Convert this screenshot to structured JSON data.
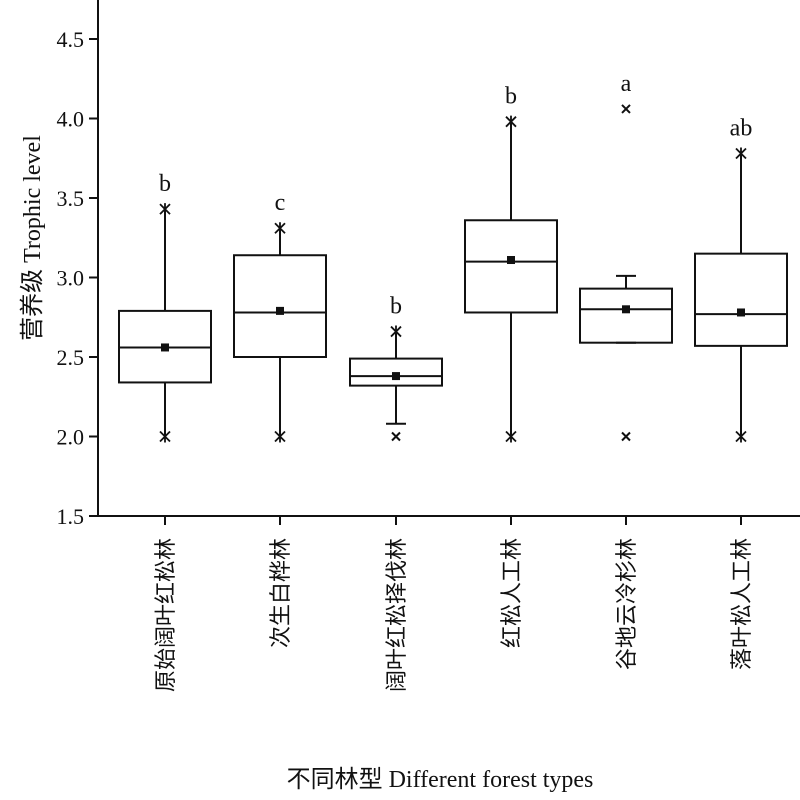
{
  "chart_data": {
    "type": "box",
    "xlabel": "不同林型 Different forest types",
    "ylabel": "营养级 Trophic level",
    "ylim": [
      1.5,
      4.75
    ],
    "yticks": [
      1.5,
      2.0,
      2.5,
      3.0,
      3.5,
      4.0,
      4.5
    ],
    "ytick_labels": [
      "1.5",
      "2.0",
      "2.5",
      "3.0",
      "3.5",
      "4.0",
      "4.5"
    ],
    "grid": false,
    "categories": [
      "原始阔叶红松林",
      "次生白桦林",
      "阔叶红松择伐林",
      "红松人工林",
      "谷地云冷杉林",
      "落叶松人工林"
    ],
    "boxes": [
      {
        "q1": 2.34,
        "median": 2.56,
        "q3": 2.79,
        "mean": 2.56,
        "whisker_low": 2.0,
        "whisker_high": 3.43,
        "outliers": [],
        "significance": "b"
      },
      {
        "q1": 2.5,
        "median": 2.78,
        "q3": 3.14,
        "mean": 2.79,
        "whisker_low": 2.0,
        "whisker_high": 3.31,
        "outliers": [],
        "significance": "c"
      },
      {
        "q1": 2.32,
        "median": 2.38,
        "q3": 2.49,
        "mean": 2.38,
        "whisker_low": 2.08,
        "whisker_high": 2.66,
        "outliers": [
          2.0
        ],
        "significance": "b"
      },
      {
        "q1": 2.78,
        "median": 3.1,
        "q3": 3.36,
        "mean": 3.11,
        "whisker_low": 2.0,
        "whisker_high": 3.98,
        "outliers": [],
        "significance": "b"
      },
      {
        "q1": 2.59,
        "median": 2.8,
        "q3": 2.93,
        "mean": 2.8,
        "whisker_low": 2.59,
        "whisker_high": 3.01,
        "outliers": [
          2.0,
          4.06
        ],
        "significance": "a"
      },
      {
        "q1": 2.57,
        "median": 2.77,
        "q3": 3.15,
        "mean": 2.78,
        "whisker_low": 2.0,
        "whisker_high": 3.78,
        "outliers": [],
        "significance": "ab"
      }
    ]
  },
  "colors": {
    "ink": "#111111",
    "background": "#ffffff"
  }
}
